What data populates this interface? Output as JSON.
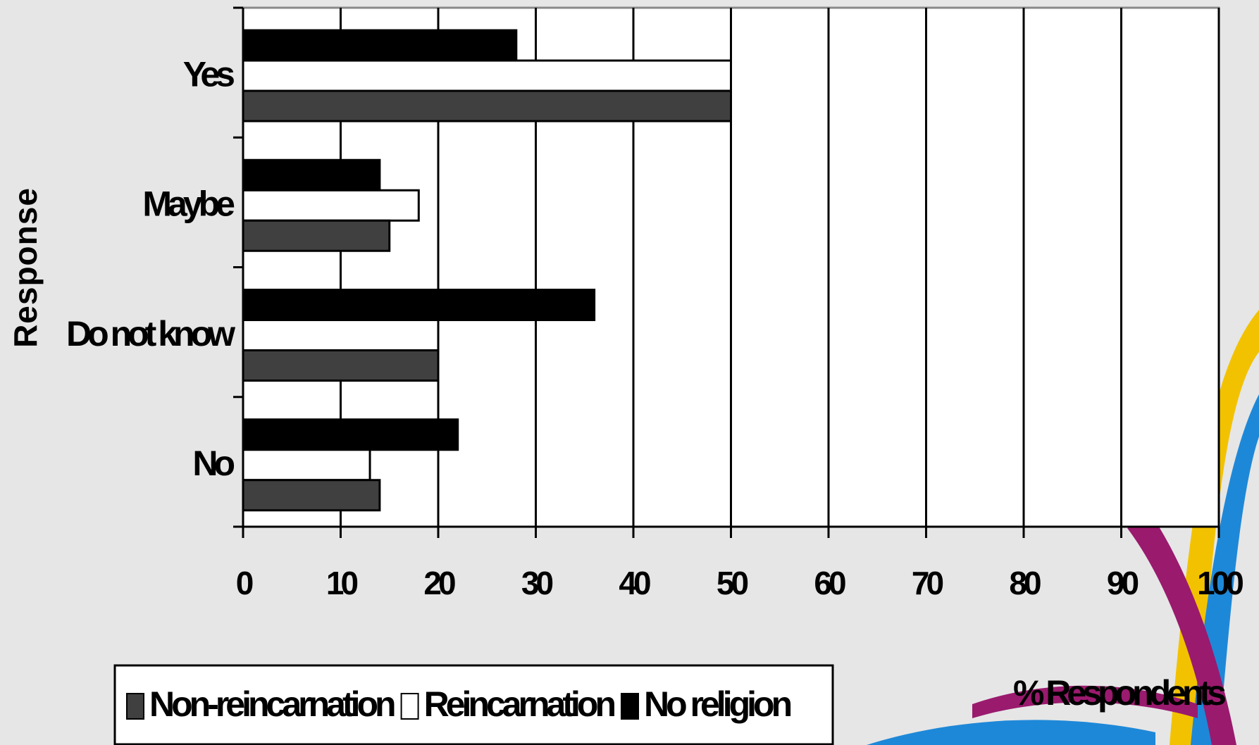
{
  "chart_data": {
    "type": "bar",
    "orientation": "horizontal",
    "categories": [
      "Yes",
      "Maybe",
      "Do not know",
      "No"
    ],
    "series": [
      {
        "name": "No religion",
        "color": "#000000",
        "values": [
          28,
          14,
          36,
          22
        ]
      },
      {
        "name": "Reincarnation",
        "color": "#ffffff",
        "values": [
          50,
          18,
          20,
          13
        ]
      },
      {
        "name": "Non-reincarnation",
        "color": "#404040",
        "values": [
          50,
          15,
          20,
          14
        ]
      }
    ],
    "legend_order": [
      2,
      1,
      0
    ],
    "xlabel": "% Respondents",
    "ylabel": "Response",
    "xlim": [
      0,
      100
    ],
    "xticks": [
      0,
      10,
      20,
      30,
      40,
      50,
      60,
      70,
      80,
      90,
      100
    ],
    "grid": true
  }
}
